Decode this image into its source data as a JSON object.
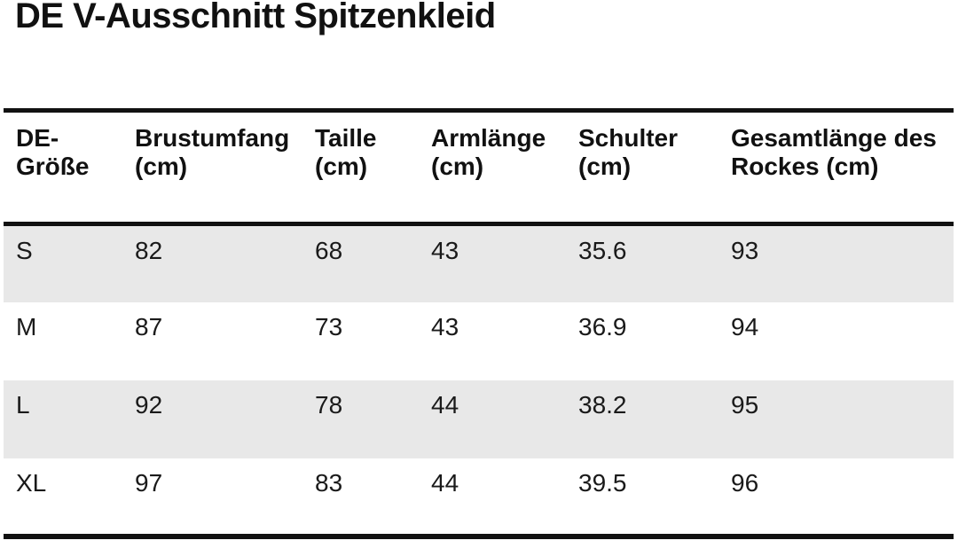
{
  "title": "DE V-Ausschnitt Spitzenkleid",
  "colors": {
    "background": "#ffffff",
    "text": "#1a1a1a",
    "rule": "#111111",
    "row_alt_bg": "#e8e8e8"
  },
  "table": {
    "header_lines": [
      [
        "DE-",
        "Größe"
      ],
      [
        "Brustumfang",
        "(cm)"
      ],
      [
        "Taille",
        "(cm)"
      ],
      [
        "Armlänge",
        "(cm)"
      ],
      [
        "Schulter",
        "(cm)"
      ],
      [
        "Gesamtlänge des",
        "Rockes (cm)"
      ]
    ],
    "rows": [
      {
        "cells": [
          "S",
          "82",
          "68",
          "43",
          "35.6",
          "93"
        ]
      },
      {
        "cells": [
          "M",
          "87",
          "73",
          "43",
          "36.9",
          "94"
        ]
      },
      {
        "cells": [
          "L",
          "92",
          "78",
          "44",
          "38.2",
          "95"
        ]
      },
      {
        "cells": [
          "XL",
          "97",
          "83",
          "44",
          "39.5",
          "96"
        ]
      }
    ]
  }
}
